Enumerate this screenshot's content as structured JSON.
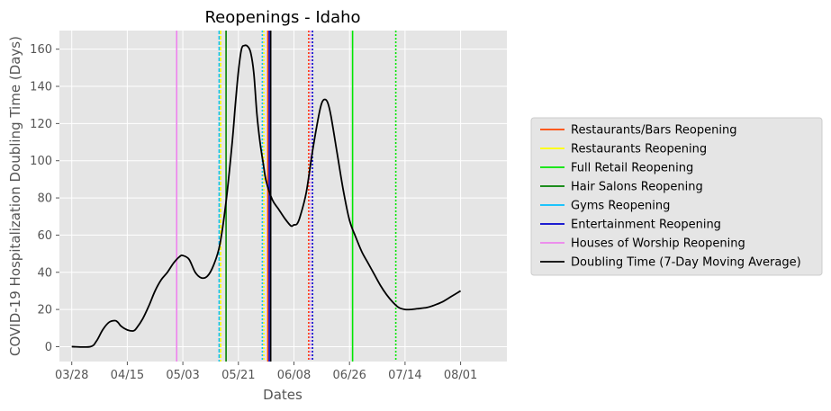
{
  "chart_data": {
    "type": "line",
    "title": "Reopenings - Idaho",
    "xlabel": "Dates",
    "ylabel": "COVID-19 Hospitalization Doubling Time (Days)",
    "x_start_date": "03/28",
    "xlim": [
      -4,
      141
    ],
    "ylim": [
      -8,
      170
    ],
    "x_ticks": [
      {
        "day": 0,
        "label": "03/28"
      },
      {
        "day": 18,
        "label": "04/15"
      },
      {
        "day": 36,
        "label": "05/03"
      },
      {
        "day": 54,
        "label": "05/21"
      },
      {
        "day": 72,
        "label": "06/08"
      },
      {
        "day": 90,
        "label": "06/26"
      },
      {
        "day": 108,
        "label": "07/14"
      },
      {
        "day": 126,
        "label": "08/01"
      }
    ],
    "y_ticks": [
      0,
      20,
      40,
      60,
      80,
      100,
      120,
      140,
      160
    ],
    "series": [
      {
        "name": "Doubling Time (7-Day Moving Average)",
        "color": "#000000",
        "points": [
          [
            0,
            0
          ],
          [
            6,
            0
          ],
          [
            8,
            3
          ],
          [
            10,
            9
          ],
          [
            12,
            13
          ],
          [
            14,
            14
          ],
          [
            15,
            13
          ],
          [
            16,
            11
          ],
          [
            18,
            9
          ],
          [
            20,
            8.5
          ],
          [
            21,
            10
          ],
          [
            23,
            15
          ],
          [
            25,
            22
          ],
          [
            27,
            30
          ],
          [
            29,
            36
          ],
          [
            31,
            40
          ],
          [
            33,
            45
          ],
          [
            35,
            48.5
          ],
          [
            36,
            49
          ],
          [
            38,
            47
          ],
          [
            40,
            40
          ],
          [
            42,
            37
          ],
          [
            44,
            38
          ],
          [
            46,
            44
          ],
          [
            48,
            55
          ],
          [
            50,
            78
          ],
          [
            52,
            110
          ],
          [
            53,
            130
          ],
          [
            54,
            148
          ],
          [
            55,
            160
          ],
          [
            56,
            162
          ],
          [
            57,
            161.5
          ],
          [
            58,
            158
          ],
          [
            59,
            147
          ],
          [
            60,
            125
          ],
          [
            61,
            110
          ],
          [
            62,
            99
          ],
          [
            63,
            89
          ],
          [
            65,
            79
          ],
          [
            67,
            74
          ],
          [
            69,
            69
          ],
          [
            71,
            65
          ],
          [
            72,
            65.5
          ],
          [
            73,
            66
          ],
          [
            74,
            70
          ],
          [
            76,
            83
          ],
          [
            78,
            105
          ],
          [
            80,
            124
          ],
          [
            81,
            131
          ],
          [
            82,
            133
          ],
          [
            83,
            131
          ],
          [
            84,
            124
          ],
          [
            86,
            104
          ],
          [
            88,
            84
          ],
          [
            90,
            68
          ],
          [
            92,
            59
          ],
          [
            94,
            51
          ],
          [
            96,
            45
          ],
          [
            98,
            39
          ],
          [
            100,
            33
          ],
          [
            102,
            28
          ],
          [
            104,
            24
          ],
          [
            106,
            21
          ],
          [
            108,
            20
          ],
          [
            110,
            20
          ],
          [
            112,
            20.4
          ],
          [
            115,
            21
          ],
          [
            117,
            22
          ],
          [
            120,
            24
          ],
          [
            123,
            27
          ],
          [
            126,
            30
          ]
        ]
      }
    ],
    "reopenings": [
      {
        "name": "Restaurants/Bars Reopening",
        "color": "#ff4500"
      },
      {
        "name": "Restaurants Reopening",
        "color": "#ffff00"
      },
      {
        "name": "Full Retail Reopening",
        "color": "#00e600"
      },
      {
        "name": "Hair Salons Reopening",
        "color": "#008000"
      },
      {
        "name": "Gyms Reopening",
        "color": "#00bfff"
      },
      {
        "name": "Entertainment Reopening",
        "color": "#0000cd"
      },
      {
        "name": "Houses of Worship Reopening",
        "color": "#ee82ee"
      }
    ],
    "vlines": [
      {
        "day": 34,
        "colors": [
          "#ee82ee"
        ],
        "style": "solid"
      },
      {
        "day": 48,
        "colors": [
          "#00bfff",
          "#ffff00"
        ],
        "style": "dashed-pair"
      },
      {
        "day": 50,
        "colors": [
          "#008000"
        ],
        "style": "solid"
      },
      {
        "day": 62,
        "colors": [
          "#00bfff",
          "#ffff00"
        ],
        "style": "dotted-pair"
      },
      {
        "day": 64,
        "colors": [
          "#ff4500",
          "#0000cd",
          "#000000"
        ],
        "style": "solid"
      },
      {
        "day": 77,
        "colors": [
          "#ff4500",
          "#ee82ee"
        ],
        "style": "dotted-pair"
      },
      {
        "day": 78,
        "colors": [
          "#0000cd"
        ],
        "style": "dotted"
      },
      {
        "day": 91,
        "colors": [
          "#00e600"
        ],
        "style": "solid"
      },
      {
        "day": 105,
        "colors": [
          "#00e600"
        ],
        "style": "dotted"
      }
    ],
    "legend": {
      "placement": "center-right",
      "entries": [
        {
          "label": "Restaurants/Bars Reopening",
          "color": "#ff4500"
        },
        {
          "label": "Restaurants Reopening",
          "color": "#ffff00"
        },
        {
          "label": "Full Retail Reopening",
          "color": "#00e600"
        },
        {
          "label": "Hair Salons Reopening",
          "color": "#008000"
        },
        {
          "label": "Gyms Reopening",
          "color": "#00bfff"
        },
        {
          "label": "Entertainment Reopening",
          "color": "#0000cd"
        },
        {
          "label": "Houses of Worship Reopening",
          "color": "#ee82ee"
        },
        {
          "label": "Doubling Time (7-Day Moving Average)",
          "color": "#000000"
        }
      ]
    },
    "grid": true,
    "background": "#e5e5e5"
  }
}
